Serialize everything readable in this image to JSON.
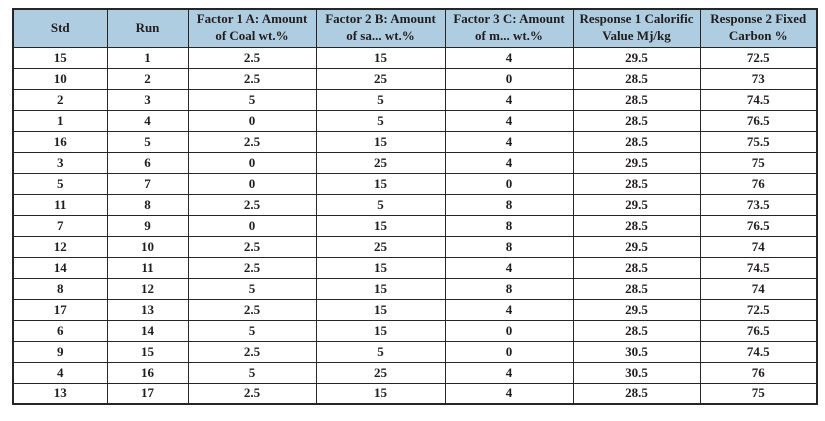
{
  "table": {
    "columns": [
      "Std",
      "Run",
      "Factor 1 A: Amount of Coal wt.%",
      "Factor 2 B: Amount of sa... wt.%",
      "Factor 3 C: Amount of m... wt.%",
      "Response 1 Calorific Value Mj/kg",
      "Response 2 Fixed Carbon %"
    ],
    "rows": [
      [
        "15",
        "1",
        "2.5",
        "15",
        "4",
        "29.5",
        "72.5"
      ],
      [
        "10",
        "2",
        "2.5",
        "25",
        "0",
        "28.5",
        "73"
      ],
      [
        "2",
        "3",
        "5",
        "5",
        "4",
        "28.5",
        "74.5"
      ],
      [
        "1",
        "4",
        "0",
        "5",
        "4",
        "28.5",
        "76.5"
      ],
      [
        "16",
        "5",
        "2.5",
        "15",
        "4",
        "28.5",
        "75.5"
      ],
      [
        "3",
        "6",
        "0",
        "25",
        "4",
        "29.5",
        "75"
      ],
      [
        "5",
        "7",
        "0",
        "15",
        "0",
        "28.5",
        "76"
      ],
      [
        "11",
        "8",
        "2.5",
        "5",
        "8",
        "29.5",
        "73.5"
      ],
      [
        "7",
        "9",
        "0",
        "15",
        "8",
        "28.5",
        "76.5"
      ],
      [
        "12",
        "10",
        "2.5",
        "25",
        "8",
        "29.5",
        "74"
      ],
      [
        "14",
        "11",
        "2.5",
        "15",
        "4",
        "28.5",
        "74.5"
      ],
      [
        "8",
        "12",
        "5",
        "15",
        "8",
        "28.5",
        "74"
      ],
      [
        "17",
        "13",
        "2.5",
        "15",
        "4",
        "29.5",
        "72.5"
      ],
      [
        "6",
        "14",
        "5",
        "15",
        "0",
        "28.5",
        "76.5"
      ],
      [
        "9",
        "15",
        "2.5",
        "5",
        "0",
        "30.5",
        "74.5"
      ],
      [
        "4",
        "16",
        "5",
        "25",
        "4",
        "30.5",
        "76"
      ],
      [
        "13",
        "17",
        "2.5",
        "15",
        "4",
        "28.5",
        "75"
      ]
    ]
  },
  "colors": {
    "header_bg": "#aecde1",
    "border": "#262626",
    "text": "#211d1d"
  }
}
